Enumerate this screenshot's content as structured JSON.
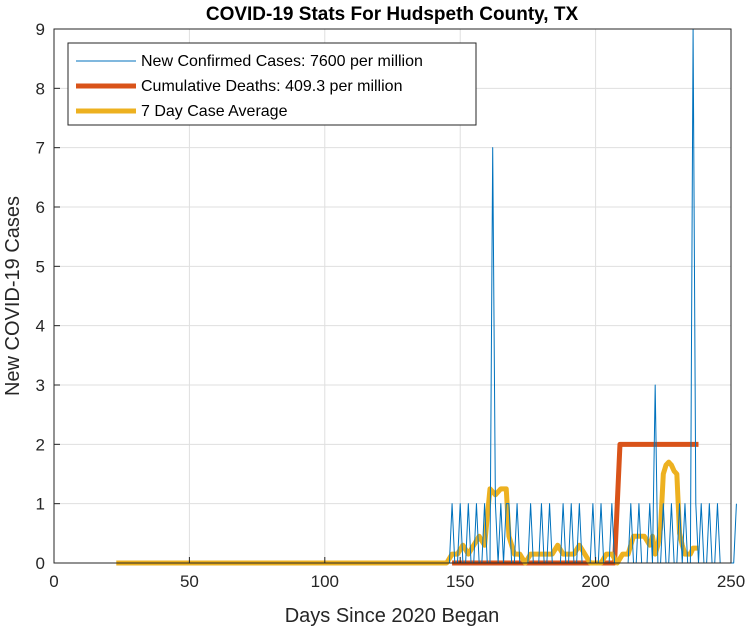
{
  "chart_data": {
    "type": "line",
    "title": "COVID-19 Stats For Hudspeth County, TX",
    "xlabel": "Days Since 2020 Began",
    "ylabel": "New COVID-19 Cases",
    "xlim": [
      0,
      250
    ],
    "ylim": [
      0,
      9
    ],
    "xticks": [
      0,
      50,
      100,
      150,
      200,
      250
    ],
    "yticks": [
      0,
      1,
      2,
      3,
      4,
      5,
      6,
      7,
      8,
      9
    ],
    "grid": true,
    "legend_position": "top-left",
    "series": [
      {
        "name": "New Confirmed Cases: 7600 per million",
        "color": "#0072BD",
        "x_start": 23,
        "values": [
          0,
          0,
          0,
          0,
          0,
          0,
          0,
          0,
          0,
          0,
          0,
          0,
          0,
          0,
          0,
          0,
          0,
          0,
          0,
          0,
          0,
          0,
          0,
          0,
          0,
          0,
          0,
          0,
          0,
          0,
          0,
          0,
          0,
          0,
          0,
          0,
          0,
          0,
          0,
          0,
          0,
          0,
          0,
          0,
          0,
          0,
          0,
          0,
          0,
          0,
          0,
          0,
          0,
          0,
          0,
          0,
          0,
          0,
          0,
          0,
          0,
          0,
          0,
          0,
          0,
          0,
          0,
          0,
          0,
          0,
          0,
          0,
          0,
          0,
          0,
          0,
          0,
          0,
          0,
          0,
          0,
          0,
          0,
          0,
          0,
          0,
          0,
          0,
          0,
          0,
          0,
          0,
          0,
          0,
          0,
          0,
          0,
          0,
          0,
          0,
          0,
          0,
          0,
          0,
          0,
          0,
          0,
          0,
          0,
          0,
          0,
          0,
          0,
          0,
          0,
          0,
          0,
          0,
          0,
          0,
          0,
          0,
          0,
          0,
          1,
          0,
          0,
          1,
          0,
          0,
          1,
          0,
          0,
          1,
          0,
          0,
          1,
          0,
          0,
          7,
          1,
          0,
          1,
          0,
          1,
          1,
          0,
          0,
          1,
          0,
          0,
          0,
          0,
          1,
          0,
          0,
          0,
          1,
          0,
          0,
          1,
          0,
          0,
          0,
          0,
          1,
          0,
          0,
          1,
          0,
          0,
          1,
          0,
          0,
          0,
          0,
          1,
          0,
          0,
          1,
          0,
          0,
          0,
          1,
          0,
          0,
          0,
          0,
          0,
          0,
          1,
          0,
          0,
          1,
          0,
          0,
          0,
          1,
          0,
          3,
          0,
          0,
          1,
          0,
          0,
          1,
          0,
          0,
          1,
          0,
          1,
          0,
          0,
          9,
          1,
          0,
          1,
          0,
          0,
          1,
          0,
          0,
          1,
          0,
          0,
          0,
          0,
          0,
          0,
          1
        ]
      },
      {
        "name": "Cumulative Deaths: 409.3 per million",
        "color": "#D95319",
        "points": [
          [
            147,
            0
          ],
          [
            207,
            0
          ],
          [
            209,
            2
          ],
          [
            238,
            2
          ]
        ]
      },
      {
        "name": "7 Day Case Average",
        "color": "#EDB120",
        "points": [
          [
            23,
            0
          ],
          [
            145,
            0
          ],
          [
            147,
            0.15
          ],
          [
            149,
            0.15
          ],
          [
            151,
            0.3
          ],
          [
            153,
            0.15
          ],
          [
            155,
            0.3
          ],
          [
            157,
            0.45
          ],
          [
            159,
            0.3
          ],
          [
            161,
            1.25
          ],
          [
            163,
            1.15
          ],
          [
            165,
            1.25
          ],
          [
            167,
            1.25
          ],
          [
            168,
            0.45
          ],
          [
            170,
            0.15
          ],
          [
            172,
            0.15
          ],
          [
            174,
            0
          ],
          [
            176,
            0.15
          ],
          [
            178,
            0.15
          ],
          [
            180,
            0.15
          ],
          [
            182,
            0.15
          ],
          [
            184,
            0.15
          ],
          [
            186,
            0.3
          ],
          [
            188,
            0.15
          ],
          [
            190,
            0.15
          ],
          [
            192,
            0.15
          ],
          [
            194,
            0.3
          ],
          [
            196,
            0.15
          ],
          [
            198,
            0
          ],
          [
            200,
            0
          ],
          [
            202,
            0
          ],
          [
            204,
            0.15
          ],
          [
            206,
            0.15
          ],
          [
            208,
            0
          ],
          [
            210,
            0.15
          ],
          [
            212,
            0.15
          ],
          [
            214,
            0.45
          ],
          [
            216,
            0.45
          ],
          [
            218,
            0.45
          ],
          [
            220,
            0.3
          ],
          [
            221,
            0.45
          ],
          [
            222,
            0.15
          ],
          [
            223,
            0.3
          ],
          [
            224,
            0.6
          ],
          [
            225,
            1.5
          ],
          [
            226,
            1.65
          ],
          [
            227,
            1.7
          ],
          [
            228,
            1.65
          ],
          [
            229,
            1.55
          ],
          [
            230,
            1.5
          ],
          [
            231,
            0.5
          ],
          [
            232,
            0.3
          ],
          [
            233,
            0.15
          ],
          [
            235,
            0.15
          ],
          [
            236,
            0.25
          ],
          [
            238,
            0.25
          ]
        ]
      }
    ]
  }
}
